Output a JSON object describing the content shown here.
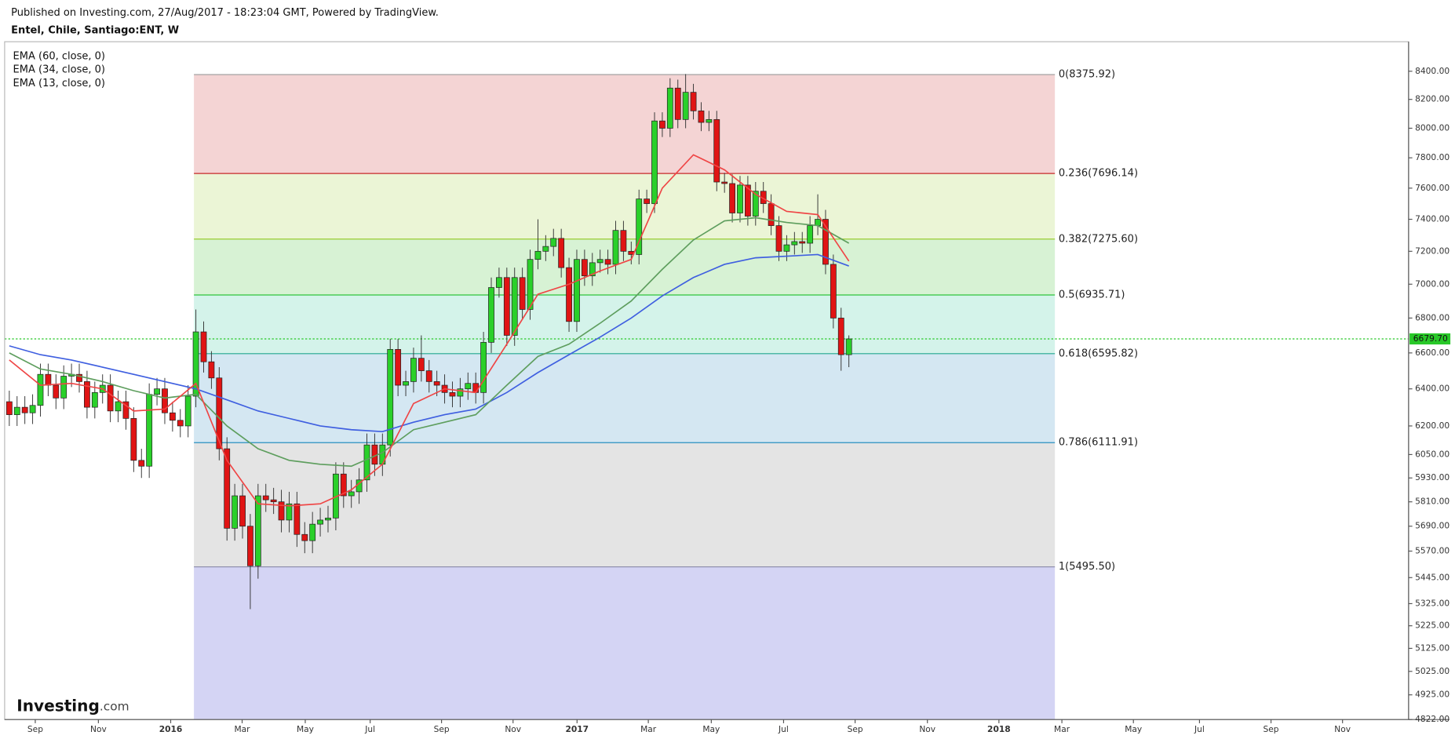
{
  "header": {
    "published": "Published on Investing.com, 27/Aug/2017 - 18:23:04 GMT, Powered by TradingView.",
    "symbol": "Entel, Chile, Santiago:ENT, W"
  },
  "logo": {
    "main": "Investing",
    "suffix": ".com"
  },
  "chart_data": {
    "type": "candlestick",
    "log_scale": true,
    "up_color": "#2ad02a",
    "down_color": "#e01414",
    "x": [
      0,
      1,
      2,
      3,
      4,
      5,
      6,
      7,
      8,
      9,
      10,
      11,
      12,
      13,
      14,
      15,
      16,
      17,
      18,
      19,
      20,
      21,
      22,
      23,
      24,
      25,
      26,
      27,
      28,
      29,
      30,
      31,
      32,
      33,
      34,
      35,
      36,
      37,
      38,
      39,
      40,
      41,
      42,
      43,
      44,
      45,
      46,
      47,
      48,
      49,
      50,
      51,
      52,
      53,
      54,
      55,
      56,
      57,
      58,
      59,
      60,
      61,
      62,
      63,
      64,
      65,
      66,
      67,
      68,
      69,
      70,
      71,
      72,
      73,
      74,
      75,
      76,
      77,
      78,
      79,
      80,
      81,
      82,
      83,
      84,
      85,
      86,
      87,
      88,
      89,
      90,
      91,
      92,
      93,
      94,
      95,
      96,
      97,
      98,
      99,
      100,
      101,
      102,
      103,
      104,
      105,
      106,
      107,
      108
    ],
    "open": [
      6330,
      6260,
      6300,
      6270,
      6310,
      6480,
      6420,
      6350,
      6470,
      6480,
      6440,
      6300,
      6380,
      6420,
      6280,
      6330,
      6240,
      6020,
      5990,
      6370,
      6400,
      6270,
      6230,
      6200,
      6360,
      6720,
      6550,
      6460,
      6080,
      5680,
      5840,
      5690,
      5500,
      5840,
      5820,
      5810,
      5720,
      5800,
      5650,
      5620,
      5700,
      5720,
      5730,
      5950,
      5840,
      5860,
      5920,
      6100,
      6000,
      6100,
      6620,
      6420,
      6440,
      6570,
      6500,
      6440,
      6420,
      6380,
      6360,
      6400,
      6430,
      6380,
      6660,
      6980,
      7040,
      6700,
      7040,
      6850,
      7150,
      7200,
      7230,
      7280,
      7100,
      6780,
      7150,
      7050,
      7130,
      7150,
      7120,
      7330,
      7200,
      7180,
      7530,
      7500,
      8050,
      8000,
      8280,
      8060,
      8250,
      8120,
      8040,
      8060,
      7640,
      7630,
      7440,
      7620,
      7420,
      7580,
      7500,
      7360,
      7200,
      7240,
      7260,
      7250,
      7360,
      7400,
      7120,
      6800,
      6590
    ],
    "high": [
      6390,
      6360,
      6360,
      6370,
      6540,
      6540,
      6480,
      6530,
      6540,
      6540,
      6500,
      6440,
      6480,
      6480,
      6390,
      6390,
      6300,
      6080,
      6430,
      6460,
      6460,
      6330,
      6290,
      6420,
      6850,
      6780,
      6610,
      6520,
      6140,
      5900,
      5900,
      5750,
      5900,
      5900,
      5880,
      5870,
      5860,
      5860,
      5710,
      5760,
      5780,
      5790,
      6010,
      6010,
      5920,
      5980,
      6160,
      6160,
      6160,
      6680,
      6680,
      6500,
      6630,
      6700,
      6560,
      6500,
      6480,
      6440,
      6460,
      6490,
      6490,
      6720,
      7040,
      7100,
      7100,
      7100,
      7100,
      7210,
      7400,
      7300,
      7340,
      7340,
      7160,
      7210,
      7210,
      7190,
      7210,
      7210,
      7390,
      7390,
      7260,
      7590,
      7590,
      8110,
      8110,
      8350,
      8340,
      8380,
      8310,
      8180,
      8120,
      8120,
      7700,
      7690,
      7680,
      7680,
      7640,
      7640,
      7560,
      7420,
      7300,
      7320,
      7320,
      7420,
      7560,
      7460,
      7180,
      6860,
      6700
    ],
    "low": [
      6200,
      6200,
      6210,
      6210,
      6250,
      6360,
      6290,
      6290,
      6410,
      6380,
      6240,
      6240,
      6320,
      6220,
      6220,
      6180,
      5960,
      5930,
      5930,
      6310,
      6210,
      6170,
      6140,
      6140,
      6300,
      6490,
      6400,
      6020,
      5620,
      5620,
      5630,
      5300,
      5440,
      5760,
      5750,
      5660,
      5660,
      5590,
      5560,
      5560,
      5640,
      5660,
      5670,
      5780,
      5780,
      5800,
      5860,
      5940,
      5940,
      6040,
      6360,
      6360,
      6380,
      6440,
      6380,
      6360,
      6320,
      6300,
      6300,
      6340,
      6320,
      6320,
      6600,
      6920,
      6640,
      6640,
      6790,
      6790,
      7090,
      7140,
      7170,
      7040,
      6720,
      6720,
      6990,
      6990,
      7070,
      7060,
      7060,
      7140,
      7120,
      7120,
      7440,
      7440,
      7940,
      7940,
      8000,
      8000,
      8060,
      7980,
      7980,
      7580,
      7570,
      7380,
      7380,
      7360,
      7360,
      7440,
      7300,
      7140,
      7140,
      7180,
      7190,
      7190,
      7300,
      7060,
      6740,
      6500,
      6520
    ],
    "close": [
      6260,
      6300,
      6270,
      6310,
      6480,
      6420,
      6350,
      6470,
      6480,
      6440,
      6300,
      6380,
      6420,
      6280,
      6330,
      6240,
      6020,
      5990,
      6370,
      6400,
      6270,
      6230,
      6200,
      6360,
      6720,
      6550,
      6460,
      6080,
      5680,
      5840,
      5690,
      5500,
      5840,
      5820,
      5810,
      5720,
      5800,
      5650,
      5620,
      5700,
      5720,
      5730,
      5950,
      5840,
      5860,
      5920,
      6100,
      6000,
      6100,
      6620,
      6420,
      6440,
      6570,
      6500,
      6440,
      6420,
      6380,
      6360,
      6400,
      6430,
      6380,
      6660,
      6980,
      7040,
      6700,
      7040,
      6850,
      7150,
      7200,
      7230,
      7280,
      7100,
      6780,
      7150,
      7050,
      7130,
      7150,
      7120,
      7330,
      7200,
      7180,
      7530,
      7500,
      8050,
      8000,
      8280,
      8060,
      8250,
      8120,
      8040,
      8060,
      7640,
      7630,
      7440,
      7620,
      7420,
      7580,
      7500,
      7360,
      7200,
      7240,
      7260,
      7250,
      7360,
      7400,
      7120,
      6800,
      6590,
      6679.7
    ],
    "series": [
      {
        "name": "EMA (60, close, 0)",
        "color": "#3f5fe0",
        "x": [
          0,
          4,
          8,
          12,
          16,
          20,
          24,
          28,
          32,
          36,
          40,
          44,
          48,
          52,
          56,
          60,
          64,
          68,
          72,
          76,
          80,
          84,
          88,
          92,
          96,
          100,
          104,
          108
        ],
        "values": [
          6640,
          6590,
          6560,
          6520,
          6480,
          6440,
          6400,
          6340,
          6280,
          6240,
          6200,
          6180,
          6170,
          6220,
          6260,
          6290,
          6380,
          6490,
          6590,
          6690,
          6800,
          6930,
          7040,
          7120,
          7160,
          7170,
          7180,
          7110
        ]
      },
      {
        "name": "EMA (34, close, 0)",
        "color": "#5e9e5e",
        "x": [
          0,
          4,
          8,
          12,
          16,
          20,
          24,
          28,
          32,
          36,
          40,
          44,
          48,
          52,
          56,
          60,
          64,
          68,
          72,
          76,
          80,
          84,
          88,
          92,
          96,
          100,
          104,
          108
        ],
        "values": [
          6600,
          6510,
          6480,
          6440,
          6390,
          6350,
          6370,
          6200,
          6080,
          6020,
          6000,
          5990,
          6060,
          6180,
          6220,
          6260,
          6420,
          6580,
          6650,
          6770,
          6900,
          7090,
          7270,
          7390,
          7410,
          7380,
          7360,
          7250
        ]
      },
      {
        "name": "EMA (13, close, 0)",
        "color": "#ef4545",
        "x": [
          0,
          4,
          8,
          12,
          16,
          20,
          24,
          28,
          32,
          36,
          40,
          44,
          48,
          52,
          56,
          60,
          64,
          68,
          72,
          76,
          80,
          84,
          88,
          92,
          96,
          100,
          104,
          108
        ],
        "values": [
          6560,
          6420,
          6430,
          6400,
          6280,
          6290,
          6430,
          6020,
          5800,
          5790,
          5800,
          5870,
          6000,
          6320,
          6400,
          6380,
          6650,
          6940,
          7000,
          7080,
          7150,
          7600,
          7820,
          7720,
          7560,
          7450,
          7430,
          7140
        ]
      }
    ],
    "fib": {
      "xrange": [
        23.75,
        134.5
      ],
      "levels": [
        {
          "label": "0(8375.92)",
          "value": 8375.92,
          "color": "#9a9a9a",
          "fill": "#f4d4d4"
        },
        {
          "label": "0.236(7696.14)",
          "value": 7696.14,
          "color": "#c62828",
          "fill": "#ebf5d6"
        },
        {
          "label": "0.382(7275.60)",
          "value": 7275.6,
          "color": "#9acd32",
          "fill": "#d7f2d4"
        },
        {
          "label": "0.5(6935.71)",
          "value": 6935.71,
          "color": "#2ec43c",
          "fill": "#d4f3ea"
        },
        {
          "label": "0.618(6595.82)",
          "value": 6595.82,
          "color": "#22a88f",
          "fill": "#d4e7f2"
        },
        {
          "label": "0.786(6111.91)",
          "value": 6111.91,
          "color": "#2b8fbf",
          "fill": "#e4e4e4"
        },
        {
          "label": "1(5495.50)",
          "value": 5495.5,
          "color": "#8a8aa8",
          "fill": "#d4d4f4"
        }
      ]
    },
    "last_price": {
      "value": 6679.7,
      "label": "6679.70",
      "color": "#28c828"
    },
    "xlim": [
      -0.6,
      180
    ],
    "xticks": [
      {
        "value": 3.34,
        "label": "Sep"
      },
      {
        "value": 11.46,
        "label": "Nov"
      },
      {
        "value": 20.76,
        "label": "2016"
      },
      {
        "value": 29.95,
        "label": "Mar"
      },
      {
        "value": 38.07,
        "label": "May"
      },
      {
        "value": 46.42,
        "label": "Jul"
      },
      {
        "value": 55.6,
        "label": "Sep"
      },
      {
        "value": 64.8,
        "label": "Nov"
      },
      {
        "value": 73.03,
        "label": "2017"
      },
      {
        "value": 82.2,
        "label": "Mar"
      },
      {
        "value": 90.3,
        "label": "May"
      },
      {
        "value": 99.6,
        "label": "Jul"
      },
      {
        "value": 108.8,
        "label": "Sep"
      },
      {
        "value": 118.1,
        "label": "Nov"
      },
      {
        "value": 127.3,
        "label": "2018"
      },
      {
        "value": 135.4,
        "label": "Mar"
      },
      {
        "value": 144.6,
        "label": "May"
      },
      {
        "value": 153.1,
        "label": "Jul"
      },
      {
        "value": 162.3,
        "label": "Sep"
      },
      {
        "value": 171.5,
        "label": "Nov"
      }
    ],
    "ylim": [
      4822,
      8615
    ],
    "yticks": [
      {
        "value": 8400,
        "label": "8400.00"
      },
      {
        "value": 8200,
        "label": "8200.00"
      },
      {
        "value": 8000,
        "label": "8000.00"
      },
      {
        "value": 7800,
        "label": "7800.00"
      },
      {
        "value": 7600,
        "label": "7600.00"
      },
      {
        "value": 7400,
        "label": "7400.00"
      },
      {
        "value": 7200,
        "label": "7200.00"
      },
      {
        "value": 7000,
        "label": "7000.00"
      },
      {
        "value": 6800,
        "label": "6800.00"
      },
      {
        "value": 6600,
        "label": "6600.00"
      },
      {
        "value": 6400,
        "label": "6400.00"
      },
      {
        "value": 6200,
        "label": "6200.00"
      },
      {
        "value": 6050,
        "label": "6050.00"
      },
      {
        "value": 5930,
        "label": "5930.00"
      },
      {
        "value": 5810,
        "label": "5810.00"
      },
      {
        "value": 5690,
        "label": "5690.00"
      },
      {
        "value": 5570,
        "label": "5570.00"
      },
      {
        "value": 5445,
        "label": "5445.00"
      },
      {
        "value": 5325,
        "label": "5325.00"
      },
      {
        "value": 5225,
        "label": "5225.00"
      },
      {
        "value": 5125,
        "label": "5125.00"
      },
      {
        "value": 5025,
        "label": "5025.00"
      },
      {
        "value": 4925,
        "label": "4925.00"
      },
      {
        "value": 4822,
        "label": "4822.00"
      }
    ]
  }
}
